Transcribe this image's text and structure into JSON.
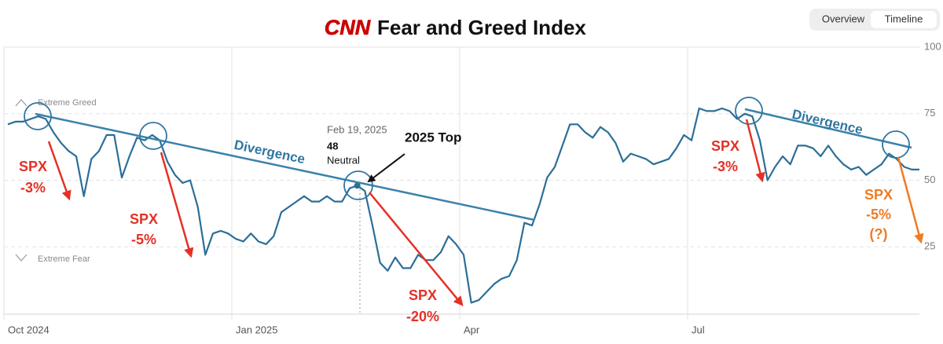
{
  "chart_data": {
    "type": "line",
    "logo": "CNN",
    "title": "Fear and Greed Index",
    "tabs": [
      "Overview",
      "Timeline"
    ],
    "active_tab": 1,
    "categories": [
      "Oct 2024",
      null,
      null,
      null,
      null,
      null,
      null,
      null,
      null,
      null,
      null,
      null,
      null,
      null,
      null,
      null,
      null,
      null,
      null,
      null,
      null,
      null,
      null,
      null,
      null,
      null,
      null,
      null,
      null,
      null,
      "Jan 2025",
      null,
      null,
      null,
      null,
      null,
      null,
      null,
      null,
      null,
      null,
      null,
      null,
      null,
      null,
      null,
      null,
      null,
      null,
      null,
      null,
      null,
      null,
      null,
      null,
      null,
      null,
      null,
      null,
      null,
      "Apr",
      null,
      null,
      null,
      null,
      null,
      null,
      null,
      null,
      null,
      null,
      null,
      null,
      null,
      null,
      null,
      null,
      null,
      null,
      null,
      null,
      null,
      null,
      null,
      null,
      null,
      null,
      null,
      null,
      null,
      "Jul",
      null,
      null,
      null,
      null,
      null,
      null,
      null,
      null,
      null,
      null,
      null,
      null,
      null,
      null,
      null,
      null,
      null,
      null,
      null,
      null,
      null,
      null,
      null,
      null,
      null,
      null,
      null,
      null,
      null,
      null
    ],
    "values": [
      71,
      72,
      72,
      73,
      74,
      73,
      68,
      64,
      61,
      59,
      44,
      58,
      61,
      67,
      67,
      51,
      59,
      66,
      65,
      67,
      65,
      57,
      52,
      49,
      50,
      40,
      22,
      30,
      31,
      30,
      28,
      27,
      30,
      27,
      26,
      29,
      38,
      40,
      42,
      44,
      42,
      42,
      44,
      42,
      42,
      47,
      48,
      46,
      33,
      19,
      16,
      21,
      17,
      17,
      22,
      20,
      20,
      23,
      29,
      26,
      22,
      4,
      5,
      8,
      11,
      13,
      14,
      20,
      34,
      33,
      41,
      51,
      55,
      63,
      71,
      71,
      68,
      66,
      70,
      68,
      64,
      57,
      60,
      59,
      58,
      56,
      57,
      58,
      62,
      67,
      65,
      77,
      76,
      76,
      77,
      76,
      73,
      75,
      74,
      65,
      50,
      55,
      59,
      56,
      63,
      63,
      62,
      59,
      63,
      59,
      56,
      54,
      55,
      52,
      54,
      56,
      60,
      58,
      55,
      54,
      54
    ],
    "color": "#2c6e97",
    "ylim": [
      0,
      100
    ],
    "yticks": [
      25,
      50,
      75,
      100
    ],
    "grid": true,
    "zones": [
      "Extreme Greed",
      "Extreme Fear"
    ],
    "tooltip": {
      "date": "Feb 19, 2025",
      "value": 48,
      "rating": "Neutral"
    },
    "annotations": {
      "top": "2025 Top",
      "divergence": [
        "Divergence",
        "Divergence"
      ],
      "spx": [
        [
          "SPX",
          "-3%"
        ],
        [
          "SPX",
          "-5%"
        ],
        [
          "SPX",
          "-20%"
        ],
        [
          "SPX",
          "-3%"
        ],
        [
          "SPX",
          "-5%",
          "(?)"
        ]
      ]
    }
  }
}
